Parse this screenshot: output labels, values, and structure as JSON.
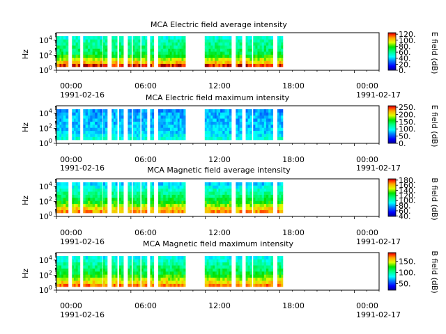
{
  "chart_data": [
    {
      "type": "heatmap",
      "title": "MCA  Electric field average intensity",
      "ylabel": "Hz",
      "y_scale": "log",
      "ylim": [
        1,
        100000
      ],
      "y_ticks": [
        "10^0",
        "10^2",
        "10^4"
      ],
      "x_ticks": [
        "00:00",
        "06:00",
        "12:00",
        "18:00",
        "00:00"
      ],
      "x_dates": [
        "1991-02-16",
        "1991-02-17"
      ],
      "colorbar_label": "E field (dB)",
      "colorbar_ticks": [
        "0.",
        "20.",
        "40.",
        "60.",
        "80.",
        "100.",
        "120."
      ],
      "colorbar_range": [
        0,
        125
      ],
      "field": "E",
      "stat": "avg",
      "data_intervals": [
        [
          0.0,
          0.25
        ],
        [
          0.25,
          0.55
        ],
        [
          0.55,
          0.95
        ],
        [
          1.25,
          1.55
        ],
        [
          1.55,
          1.9
        ],
        [
          2.15,
          2.9
        ],
        [
          2.9,
          3.3
        ],
        [
          3.3,
          3.7
        ],
        [
          3.75,
          4.1
        ],
        [
          4.45,
          4.9
        ],
        [
          5.05,
          5.4
        ],
        [
          5.75,
          6.05
        ],
        [
          6.15,
          6.75
        ],
        [
          6.85,
          7.3
        ],
        [
          7.55,
          7.85
        ],
        [
          8.2,
          8.6
        ],
        [
          8.6,
          9.0
        ],
        [
          9.0,
          9.6
        ],
        [
          9.6,
          10.4
        ],
        [
          11.95,
          12.75
        ],
        [
          12.75,
          13.2
        ],
        [
          13.2,
          14.1
        ],
        [
          14.45,
          14.75
        ],
        [
          14.75,
          14.95
        ],
        [
          15.25,
          15.75
        ],
        [
          15.85,
          16.9
        ],
        [
          16.9,
          17.45
        ],
        [
          17.8,
          18.25
        ]
      ]
    },
    {
      "type": "heatmap",
      "title": "MCA  Electric field maximum intensity",
      "ylabel": "Hz",
      "y_scale": "log",
      "ylim": [
        1,
        100000
      ],
      "y_ticks": [
        "10^0",
        "10^2",
        "10^4"
      ],
      "x_ticks": [
        "00:00",
        "06:00",
        "12:00",
        "18:00",
        "00:00"
      ],
      "x_dates": [
        "1991-02-16",
        "1991-02-17"
      ],
      "colorbar_label": "E field (dB)",
      "colorbar_ticks": [
        "0.",
        "50.",
        "100.",
        "150.",
        "200.",
        "250."
      ],
      "colorbar_range": [
        0,
        260
      ],
      "field": "E",
      "stat": "max",
      "data_intervals": [
        [
          0.0,
          0.25
        ],
        [
          0.25,
          0.55
        ],
        [
          0.55,
          0.95
        ],
        [
          1.25,
          1.55
        ],
        [
          1.55,
          1.9
        ],
        [
          2.15,
          2.9
        ],
        [
          2.9,
          3.3
        ],
        [
          3.3,
          3.7
        ],
        [
          3.75,
          4.1
        ],
        [
          4.45,
          4.9
        ],
        [
          5.05,
          5.4
        ],
        [
          5.75,
          6.05
        ],
        [
          6.15,
          6.75
        ],
        [
          6.85,
          7.3
        ],
        [
          7.55,
          7.85
        ],
        [
          8.2,
          8.6
        ],
        [
          8.6,
          9.0
        ],
        [
          9.0,
          9.6
        ],
        [
          9.6,
          10.4
        ],
        [
          11.95,
          12.75
        ],
        [
          12.75,
          13.2
        ],
        [
          13.2,
          14.1
        ],
        [
          14.45,
          14.75
        ],
        [
          14.75,
          14.95
        ],
        [
          15.25,
          15.75
        ],
        [
          15.85,
          16.9
        ],
        [
          16.9,
          17.45
        ],
        [
          17.8,
          18.25
        ]
      ]
    },
    {
      "type": "heatmap",
      "title": "MCA  Magnetic field average intensity",
      "ylabel": "Hz",
      "y_scale": "log",
      "ylim": [
        1,
        100000
      ],
      "y_ticks": [
        "10^0",
        "10^2",
        "10^4"
      ],
      "x_ticks": [
        "00:00",
        "06:00",
        "12:00",
        "18:00",
        "00:00"
      ],
      "x_dates": [
        "1991-02-16",
        "1991-02-17"
      ],
      "colorbar_label": "B field (dB)",
      "colorbar_ticks": [
        "40.",
        "60.",
        "80.",
        "100.",
        "120.",
        "140.",
        "160.",
        "180."
      ],
      "colorbar_range": [
        38,
        185
      ],
      "field": "B",
      "stat": "avg",
      "data_intervals": [
        [
          0.0,
          0.25
        ],
        [
          0.25,
          0.55
        ],
        [
          0.55,
          0.95
        ],
        [
          1.25,
          1.55
        ],
        [
          1.55,
          1.9
        ],
        [
          2.15,
          2.9
        ],
        [
          2.9,
          3.3
        ],
        [
          3.3,
          3.7
        ],
        [
          3.75,
          4.1
        ],
        [
          4.45,
          4.9
        ],
        [
          5.05,
          5.4
        ],
        [
          5.75,
          6.05
        ],
        [
          6.15,
          6.75
        ],
        [
          6.85,
          7.3
        ],
        [
          7.55,
          7.85
        ],
        [
          8.2,
          8.6
        ],
        [
          8.6,
          9.0
        ],
        [
          9.0,
          9.6
        ],
        [
          9.6,
          10.4
        ],
        [
          11.95,
          12.75
        ],
        [
          12.75,
          13.2
        ],
        [
          13.2,
          14.1
        ],
        [
          14.45,
          14.75
        ],
        [
          14.75,
          14.95
        ],
        [
          15.25,
          15.75
        ],
        [
          15.85,
          16.9
        ],
        [
          16.9,
          17.45
        ],
        [
          17.8,
          18.25
        ]
      ]
    },
    {
      "type": "heatmap",
      "title": "MCA  Magnetic field maximum intensity",
      "ylabel": "Hz",
      "y_scale": "log",
      "ylim": [
        1,
        100000
      ],
      "y_ticks": [
        "10^0",
        "10^2",
        "10^4"
      ],
      "x_ticks": [
        "00:00",
        "06:00",
        "12:00",
        "18:00",
        "00:00"
      ],
      "x_dates": [
        "1991-02-16",
        "1991-02-17"
      ],
      "colorbar_label": "B field (dB)",
      "colorbar_ticks": [
        "50.",
        "100.",
        "150."
      ],
      "colorbar_range": [
        20,
        190
      ],
      "field": "B",
      "stat": "max",
      "data_intervals": [
        [
          0.0,
          0.25
        ],
        [
          0.25,
          0.55
        ],
        [
          0.55,
          0.95
        ],
        [
          1.25,
          1.55
        ],
        [
          1.55,
          1.9
        ],
        [
          2.15,
          2.9
        ],
        [
          2.9,
          3.3
        ],
        [
          3.3,
          3.7
        ],
        [
          3.75,
          4.1
        ],
        [
          4.45,
          4.9
        ],
        [
          5.05,
          5.4
        ],
        [
          5.75,
          6.05
        ],
        [
          6.15,
          6.75
        ],
        [
          6.85,
          7.3
        ],
        [
          7.55,
          7.85
        ],
        [
          8.2,
          8.6
        ],
        [
          8.6,
          9.0
        ],
        [
          9.0,
          9.6
        ],
        [
          9.6,
          10.4
        ],
        [
          11.95,
          12.75
        ],
        [
          12.75,
          13.2
        ],
        [
          13.2,
          14.1
        ],
        [
          14.45,
          14.75
        ],
        [
          14.75,
          14.95
        ],
        [
          15.25,
          15.75
        ],
        [
          15.85,
          16.9
        ],
        [
          16.9,
          17.45
        ],
        [
          17.8,
          18.25
        ]
      ]
    }
  ]
}
